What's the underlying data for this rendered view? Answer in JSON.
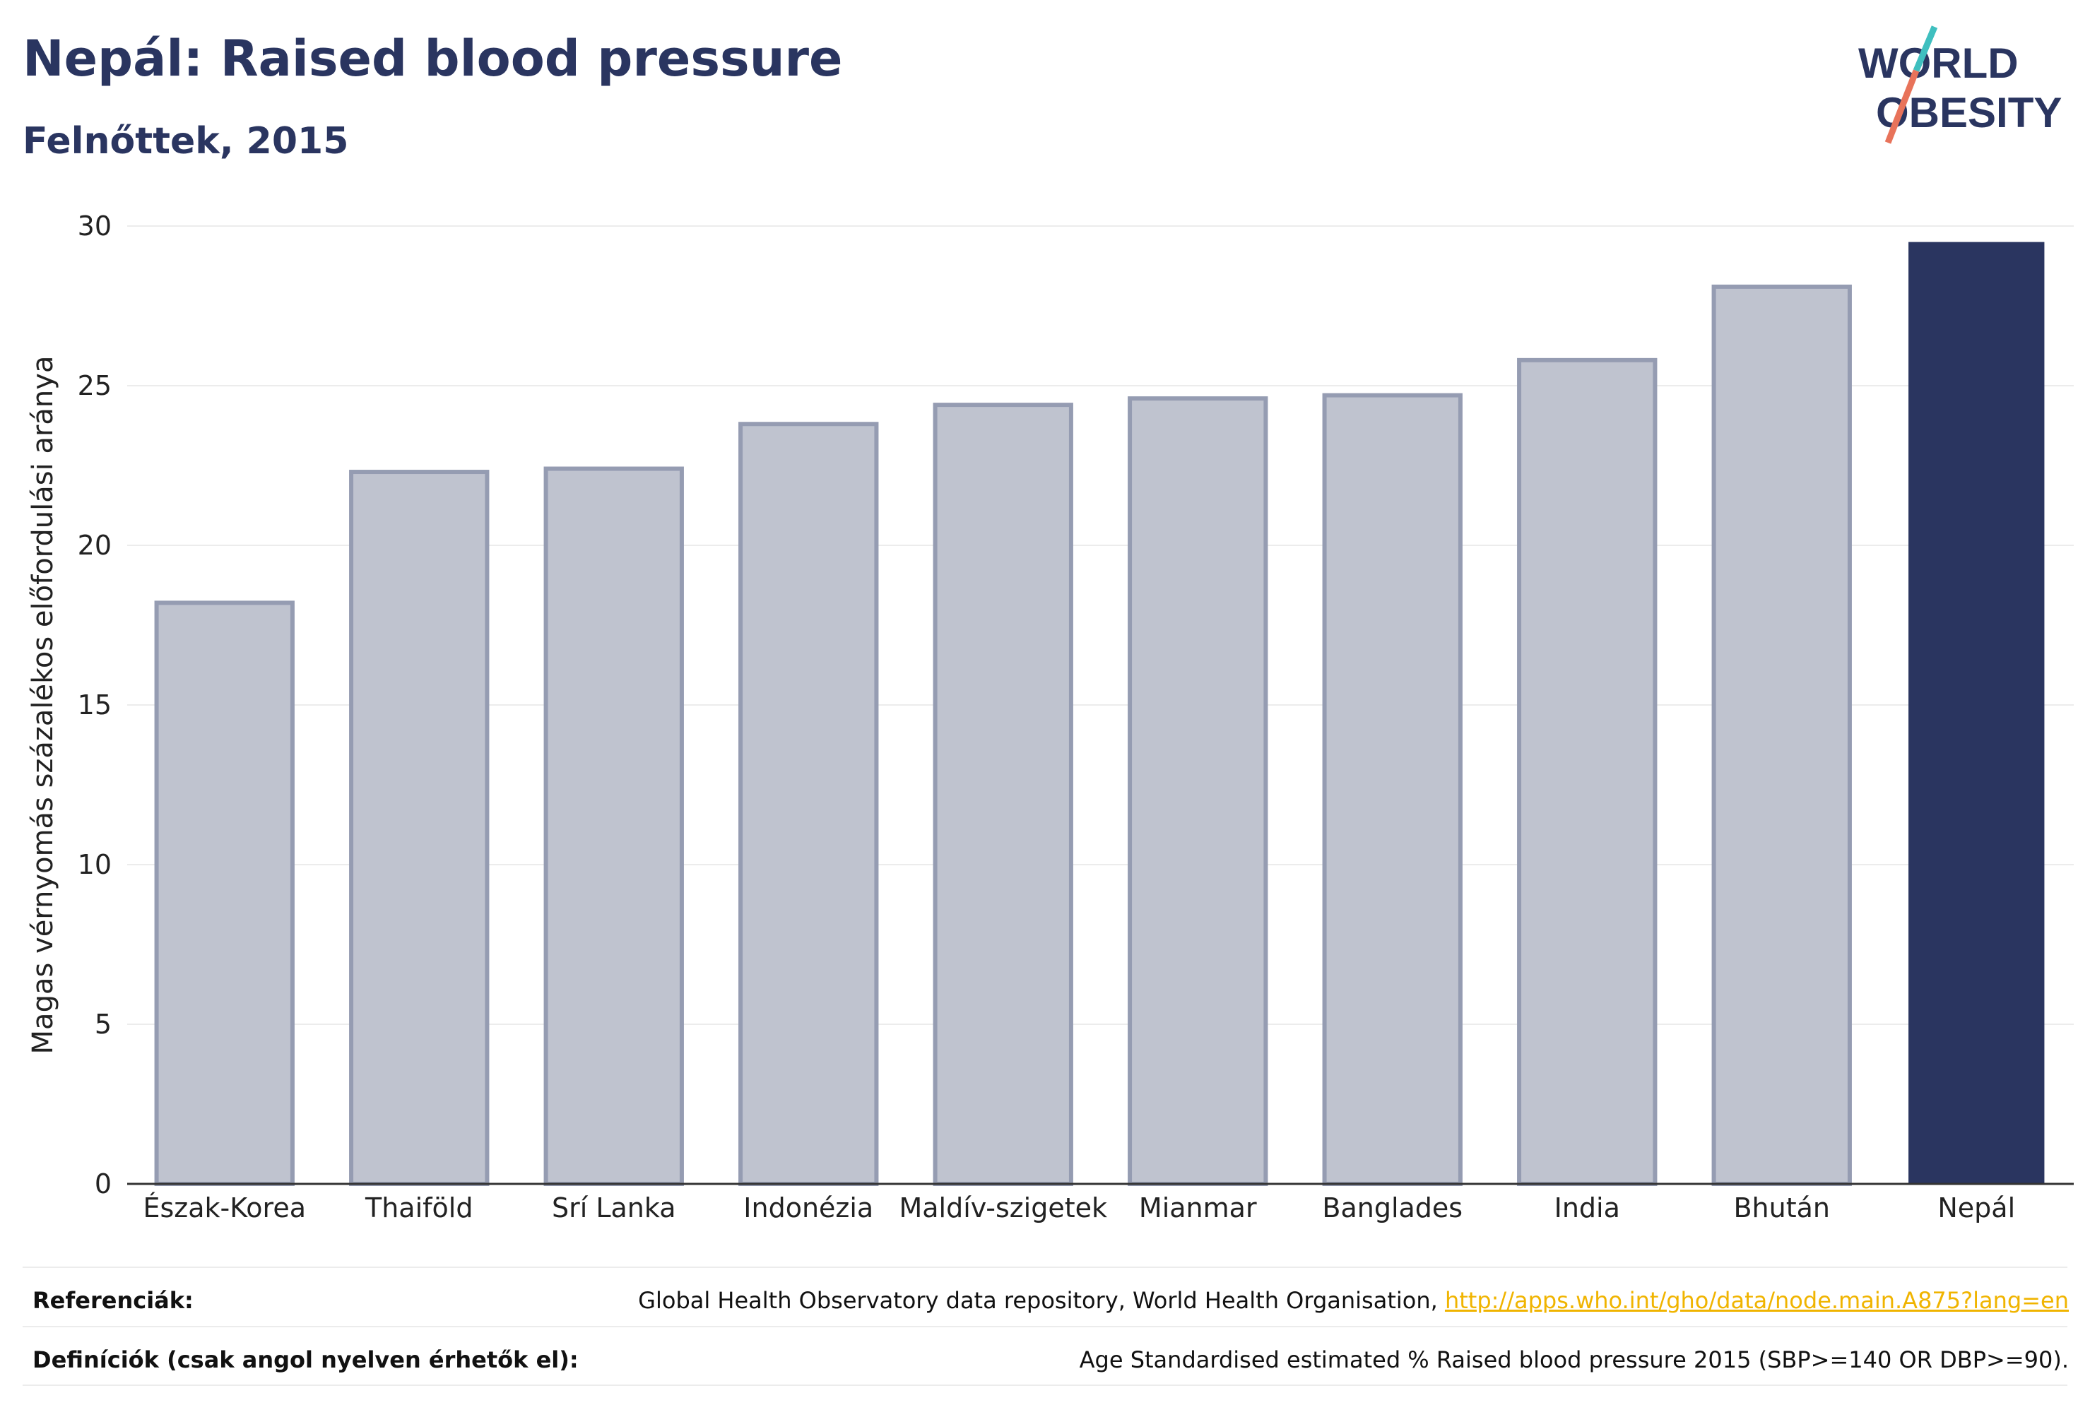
{
  "header": {
    "title": "Nepál: Raised blood pressure",
    "subtitle": "Felnőttek, 2015"
  },
  "logo": {
    "line1": "WORLD",
    "line2": "OBESITY",
    "slash_colors": [
      "#3fbfbf",
      "#e8735a"
    ]
  },
  "chart_data": {
    "type": "bar",
    "title": "",
    "xlabel": "",
    "ylabel": "Magas vérnyomás százalékos előfordulási aránya",
    "ylim": [
      0,
      30
    ],
    "yticks": [
      0,
      5,
      10,
      15,
      20,
      25,
      30
    ],
    "grid": true,
    "categories": [
      "Észak-Korea",
      "Thaiföld",
      "Srí Lanka",
      "Indonézia",
      "Maldív-szigetek",
      "Mianmar",
      "Banglades",
      "India",
      "Bhután",
      "Nepál"
    ],
    "values": [
      18.2,
      22.3,
      22.4,
      23.8,
      24.4,
      24.6,
      24.7,
      25.8,
      28.1,
      29.5
    ],
    "highlight": "Nepál",
    "colors": {
      "bar": "#bfc3cf",
      "bar_border": "#959cb2",
      "highlight": "#2a3560",
      "grid": "#ececec",
      "axis": "#333333"
    }
  },
  "footer": {
    "references_label": "Referenciák:",
    "references_text": "Global Health Observatory data repository, World Health Organisation,",
    "references_link": "http://apps.who.int/gho/data/node.main.A875?lang=en",
    "definitions_label": "Definíciók (csak angol nyelven érhetők el):",
    "definitions_text": "Age Standardised estimated % Raised blood pressure 2015 (SBP>=140 OR DBP>=90)."
  }
}
